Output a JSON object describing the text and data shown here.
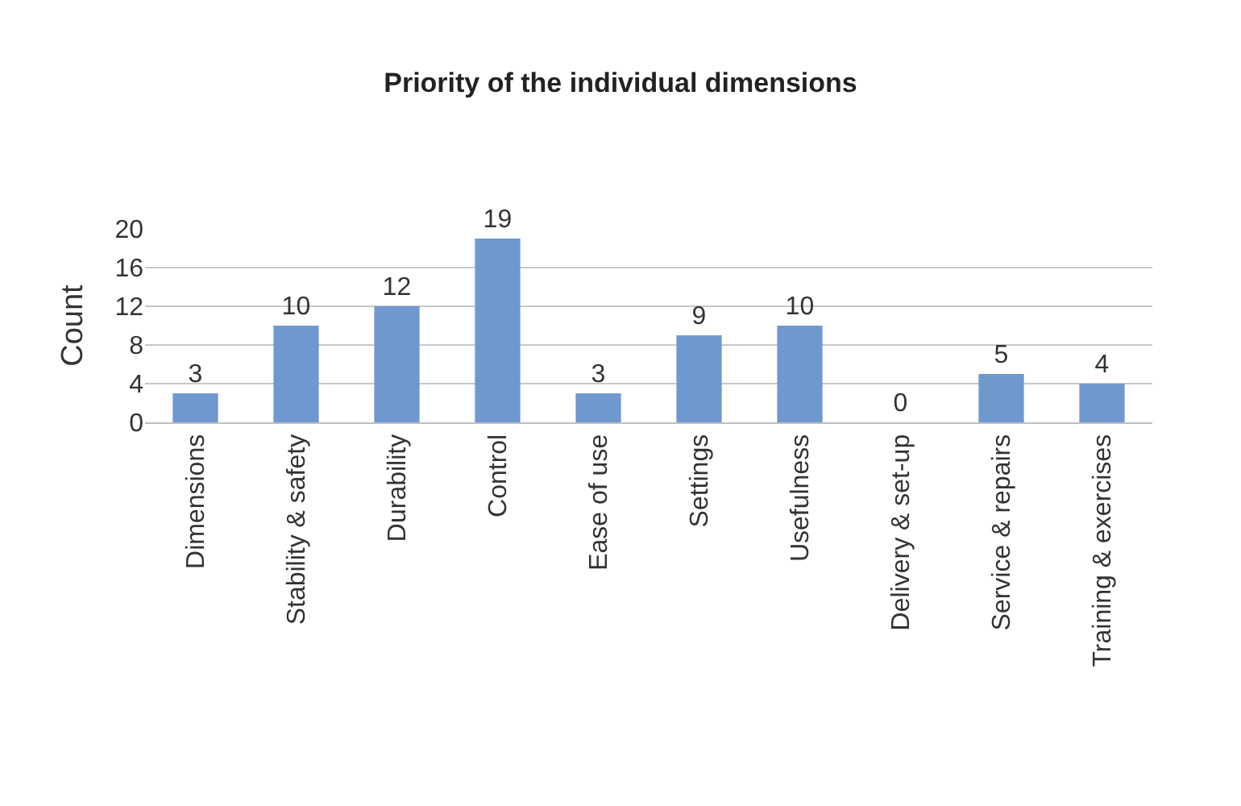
{
  "chart_data": {
    "type": "bar",
    "title": "Priority of the individual dimensions",
    "ylabel": "Count",
    "categories": [
      "Dimensions",
      "Stability & safety",
      "Durability",
      "Control",
      "Ease of use",
      "Settings",
      "Usefulness",
      "Delivery & set-up",
      "Service & repairs",
      "Training & exercises"
    ],
    "values": [
      3,
      10,
      12,
      19,
      3,
      9,
      10,
      0,
      5,
      4
    ],
    "color": "#6f98cf",
    "ylim": [
      0,
      20
    ],
    "yticks": [
      0,
      4,
      8,
      12,
      16,
      20
    ],
    "grid": "y",
    "data_labels": true,
    "legend": false
  }
}
